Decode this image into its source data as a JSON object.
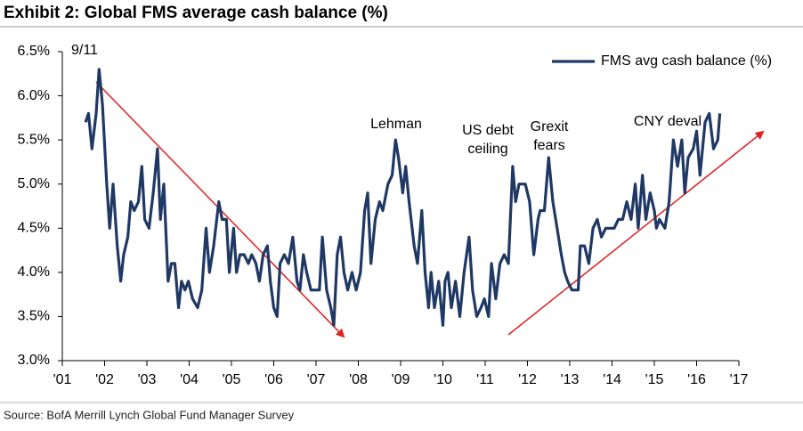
{
  "chart_data": {
    "type": "line",
    "title": "Exhibit 2: Global FMS average cash balance (%)",
    "source": "Source: BofA Merrill Lynch Global Fund Manager Survey",
    "legend": "top-right",
    "grid": false,
    "annotations": [
      [
        "9/11"
      ],
      [
        "Lehman"
      ],
      [
        "US debt",
        "ceiling"
      ],
      [
        "Grexit",
        "fears"
      ],
      [
        "CNY deval"
      ]
    ],
    "x": [
      2001.55,
      2001.62,
      2001.7,
      2001.8,
      2001.87,
      2001.95,
      2002.05,
      2002.12,
      2002.2,
      2002.3,
      2002.38,
      2002.45,
      2002.55,
      2002.62,
      2002.7,
      2002.8,
      2002.88,
      2002.95,
      2003.05,
      2003.15,
      2003.25,
      2003.32,
      2003.4,
      2003.5,
      2003.58,
      2003.66,
      2003.75,
      2003.82,
      2003.9,
      2003.98,
      2004.08,
      2004.2,
      2004.3,
      2004.4,
      2004.48,
      2004.58,
      2004.7,
      2004.78,
      2004.88,
      2004.95,
      2005.05,
      2005.12,
      2005.2,
      2005.3,
      2005.4,
      2005.48,
      2005.58,
      2005.66,
      2005.75,
      2005.85,
      2005.92,
      2006.0,
      2006.08,
      2006.15,
      2006.25,
      2006.35,
      2006.45,
      2006.55,
      2006.62,
      2006.7,
      2006.78,
      2006.88,
      2006.98,
      2007.08,
      2007.15,
      2007.25,
      2007.35,
      2007.42,
      2007.5,
      2007.58,
      2007.66,
      2007.75,
      2007.85,
      2007.95,
      2008.05,
      2008.15,
      2008.22,
      2008.3,
      2008.4,
      2008.5,
      2008.58,
      2008.7,
      2008.8,
      2008.88,
      2008.95,
      2009.05,
      2009.12,
      2009.2,
      2009.32,
      2009.4,
      2009.5,
      2009.58,
      2009.66,
      2009.72,
      2009.8,
      2009.9,
      2010.0,
      2010.05,
      2010.12,
      2010.2,
      2010.3,
      2010.4,
      2010.5,
      2010.62,
      2010.7,
      2010.8,
      2010.9,
      2010.98,
      2011.08,
      2011.15,
      2011.25,
      2011.35,
      2011.45,
      2011.55,
      2011.65,
      2011.72,
      2011.8,
      2011.95,
      2012.05,
      2012.15,
      2012.25,
      2012.3,
      2012.4,
      2012.5,
      2012.6,
      2012.7,
      2012.8,
      2012.88,
      2012.95,
      2013.05,
      2013.2,
      2013.25,
      2013.35,
      2013.45,
      2013.55,
      2013.65,
      2013.75,
      2013.85,
      2013.95,
      2014.05,
      2014.15,
      2014.25,
      2014.35,
      2014.45,
      2014.55,
      2014.62,
      2014.72,
      2014.8,
      2014.9,
      2015.0,
      2015.05,
      2015.12,
      2015.25,
      2015.35,
      2015.45,
      2015.55,
      2015.65,
      2015.72,
      2015.8,
      2015.92,
      2016.0,
      2016.08,
      2016.2,
      2016.3,
      2016.4,
      2016.5,
      2016.55
    ],
    "series": [
      {
        "name": "FMS avg cash balance (%)",
        "color": "#1f3864",
        "values": [
          5.7,
          5.8,
          5.4,
          5.8,
          6.3,
          5.9,
          5.0,
          4.5,
          5.0,
          4.3,
          3.9,
          4.2,
          4.4,
          4.8,
          4.7,
          4.8,
          5.2,
          4.6,
          4.5,
          4.9,
          5.4,
          4.6,
          5.0,
          3.9,
          4.1,
          4.1,
          3.6,
          3.9,
          3.8,
          3.9,
          3.7,
          3.6,
          3.8,
          4.5,
          4.0,
          4.3,
          4.8,
          4.6,
          4.6,
          4.0,
          4.5,
          4.0,
          4.2,
          4.2,
          4.1,
          4.2,
          4.1,
          3.9,
          4.2,
          4.3,
          3.9,
          3.6,
          3.5,
          4.1,
          4.2,
          4.1,
          4.4,
          3.9,
          3.8,
          4.2,
          4.0,
          3.8,
          3.8,
          3.8,
          4.4,
          3.8,
          3.6,
          3.4,
          4.2,
          4.4,
          4.0,
          3.8,
          4.0,
          3.8,
          4.0,
          4.7,
          4.9,
          4.1,
          4.6,
          4.8,
          4.7,
          5.0,
          5.1,
          5.5,
          5.3,
          4.9,
          5.2,
          4.8,
          4.3,
          4.1,
          4.7,
          4.0,
          3.6,
          4.0,
          3.6,
          3.9,
          3.4,
          3.9,
          4.0,
          3.6,
          3.9,
          3.5,
          4.0,
          4.4,
          3.8,
          3.5,
          3.6,
          3.7,
          3.5,
          4.1,
          3.7,
          4.1,
          4.2,
          4.1,
          5.2,
          4.8,
          5.0,
          5.0,
          4.8,
          4.2,
          4.6,
          4.7,
          4.7,
          5.3,
          4.8,
          4.5,
          4.2,
          4.0,
          3.9,
          3.8,
          3.8,
          4.3,
          4.3,
          4.1,
          4.5,
          4.6,
          4.4,
          4.5,
          4.5,
          4.5,
          4.6,
          4.6,
          4.8,
          4.6,
          5.0,
          4.5,
          5.1,
          4.6,
          4.9,
          4.7,
          4.5,
          4.6,
          4.5,
          4.8,
          5.5,
          5.2,
          5.5,
          4.9,
          5.3,
          5.4,
          5.6,
          5.1,
          5.7,
          5.8,
          5.4,
          5.5,
          5.8
        ]
      }
    ],
    "xlim": [
      2001,
      2017
    ],
    "xticks": [
      {
        "value": 2001,
        "label": "'01"
      },
      {
        "value": 2002,
        "label": "'02"
      },
      {
        "value": 2003,
        "label": "'03"
      },
      {
        "value": 2004,
        "label": "'04"
      },
      {
        "value": 2005,
        "label": "'05"
      },
      {
        "value": 2006,
        "label": "'06"
      },
      {
        "value": 2007,
        "label": "'07"
      },
      {
        "value": 2008,
        "label": "'08"
      },
      {
        "value": 2009,
        "label": "'09"
      },
      {
        "value": 2010,
        "label": "'10"
      },
      {
        "value": 2011,
        "label": "'11"
      },
      {
        "value": 2012,
        "label": "'12"
      },
      {
        "value": 2013,
        "label": "'13"
      },
      {
        "value": 2014,
        "label": "'14"
      },
      {
        "value": 2015,
        "label": "'15"
      },
      {
        "value": 2016,
        "label": "'16"
      },
      {
        "value": 2017,
        "label": "'17"
      }
    ],
    "ylim": [
      3.0,
      6.5
    ],
    "yticks": [
      {
        "value": 3.0,
        "label": "3.0%"
      },
      {
        "value": 3.5,
        "label": "3.5%"
      },
      {
        "value": 4.0,
        "label": "4.0%"
      },
      {
        "value": 4.5,
        "label": "4.5%"
      },
      {
        "value": 5.0,
        "label": "5.0%"
      },
      {
        "value": 5.5,
        "label": "5.5%"
      },
      {
        "value": 6.0,
        "label": "6.0%"
      },
      {
        "value": 6.5,
        "label": "6.5%"
      }
    ]
  }
}
